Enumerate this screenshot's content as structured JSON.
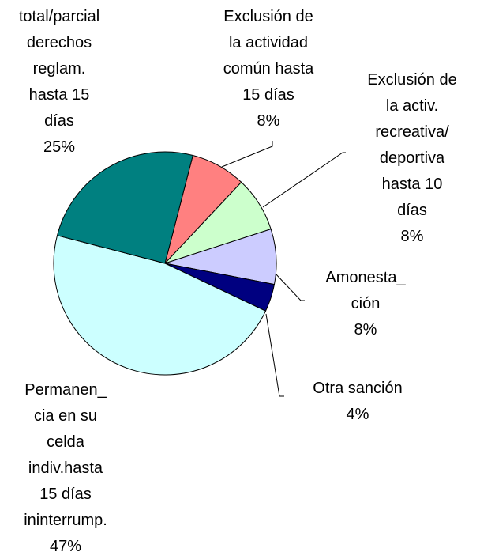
{
  "chart_data": {
    "type": "pie",
    "categories": [
      "Exclusión de\nla actividad\ncomún hasta\n15 días",
      "Exclusión de\nla activ.\nrecreativa/\ndeportiva\nhasta 10\ndías",
      "Amonesta_\nción",
      "Otra sanción",
      "Permanen_\ncia en su\ncelda\nindiv.hasta\n15 días\nininterrump.",
      "total/parcial\nderechos\nreglam.\nhasta 15\ndías"
    ],
    "values": [
      8,
      8,
      8,
      4,
      47,
      25
    ],
    "value_labels": [
      "8%",
      "8%",
      "8%",
      "4%",
      "47%",
      "25%"
    ],
    "colors": [
      "#ff8080",
      "#ccffcc",
      "#ccccff",
      "#000080",
      "#ccffff",
      "#008080"
    ]
  }
}
